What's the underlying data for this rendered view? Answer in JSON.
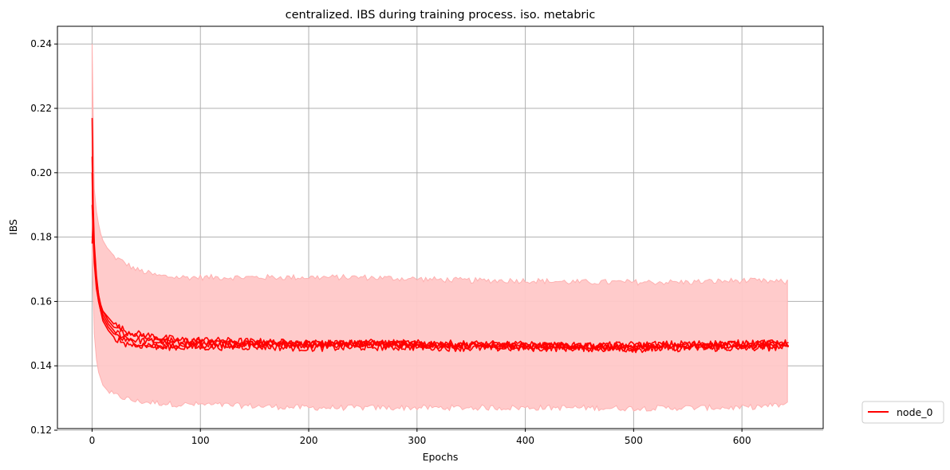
{
  "chart_data": {
    "type": "line",
    "title": "centralized. IBS during training process. iso. metabric",
    "xlabel": "Epochs",
    "ylabel": "IBS",
    "xlim": [
      -32,
      675
    ],
    "ylim": [
      0.1205,
      0.2455
    ],
    "xticks": [
      0,
      100,
      200,
      300,
      400,
      500,
      600
    ],
    "yticks": [
      0.12,
      0.14,
      0.16,
      0.18,
      0.2,
      0.22,
      0.24
    ],
    "ytick_labels": [
      "0.12",
      "0.14",
      "0.16",
      "0.18",
      "0.20",
      "0.22",
      "0.24"
    ],
    "grid": true,
    "legend": {
      "placement": "outside-lower-right",
      "entries": [
        "node_0"
      ]
    },
    "colors": {
      "line": "#ff0000",
      "band": "#ffc8c8",
      "band_edge": "#ffb0b0",
      "grid": "#b0b0b0"
    },
    "series": [
      {
        "name": "node_0",
        "runs": [
          {
            "x": [
              0,
              1,
              2,
              4,
              6,
              8,
              10,
              15,
              20,
              30,
              40,
              60,
              80,
              100,
              150,
              200,
              250,
              300,
              350,
              400,
              450,
              500,
              550,
              600,
              643
            ],
            "y": [
              0.217,
              0.19,
              0.178,
              0.168,
              0.162,
              0.158,
              0.156,
              0.153,
              0.151,
              0.149,
              0.148,
              0.1475,
              0.147,
              0.147,
              0.1468,
              0.1465,
              0.1468,
              0.1465,
              0.1462,
              0.1462,
              0.146,
              0.146,
              0.1465,
              0.147,
              0.147
            ]
          },
          {
            "x": [
              0,
              1,
              2,
              4,
              6,
              8,
              10,
              15,
              20,
              30,
              40,
              60,
              80,
              100,
              150,
              200,
              250,
              300,
              350,
              400,
              450,
              500,
              550,
              600,
              643
            ],
            "y": [
              0.178,
              0.185,
              0.175,
              0.166,
              0.161,
              0.158,
              0.157,
              0.155,
              0.153,
              0.151,
              0.15,
              0.149,
              0.148,
              0.148,
              0.1475,
              0.147,
              0.147,
              0.1465,
              0.1465,
              0.1462,
              0.1458,
              0.1455,
              0.1458,
              0.1462,
              0.1465
            ]
          },
          {
            "x": [
              0,
              1,
              2,
              4,
              6,
              8,
              10,
              15,
              20,
              30,
              40,
              60,
              80,
              100,
              150,
              200,
              250,
              300,
              350,
              400,
              450,
              500,
              550,
              600,
              643
            ],
            "y": [
              0.2,
              0.18,
              0.172,
              0.164,
              0.16,
              0.157,
              0.155,
              0.152,
              0.15,
              0.148,
              0.147,
              0.146,
              0.1458,
              0.1458,
              0.146,
              0.1455,
              0.1458,
              0.1458,
              0.1455,
              0.1455,
              0.1455,
              0.1452,
              0.1455,
              0.1455,
              0.1458
            ]
          },
          {
            "x": [
              0,
              1,
              2,
              4,
              6,
              8,
              10,
              15,
              20,
              30,
              40,
              60,
              80,
              100,
              150,
              200,
              250,
              300,
              350,
              400,
              450,
              500,
              550,
              600,
              643
            ],
            "y": [
              0.19,
              0.182,
              0.174,
              0.165,
              0.16,
              0.157,
              0.154,
              0.151,
              0.149,
              0.147,
              0.1465,
              0.146,
              0.1462,
              0.1465,
              0.1468,
              0.147,
              0.1472,
              0.147,
              0.1468,
              0.1465,
              0.1462,
              0.1465,
              0.1468,
              0.147,
              0.147
            ]
          },
          {
            "x": [
              0,
              1,
              2,
              4,
              6,
              8,
              10,
              15,
              20,
              30,
              40,
              60,
              80,
              100,
              150,
              200,
              250,
              300,
              350,
              400,
              450,
              500,
              550,
              600,
              643
            ],
            "y": [
              0.205,
              0.186,
              0.176,
              0.167,
              0.162,
              0.159,
              0.157,
              0.154,
              0.152,
              0.15,
              0.149,
              0.148,
              0.1475,
              0.1472,
              0.147,
              0.1468,
              0.1468,
              0.1466,
              0.1464,
              0.1462,
              0.146,
              0.146,
              0.146,
              0.1462,
              0.1462
            ]
          }
        ],
        "band": {
          "x": [
            0,
            1,
            2,
            4,
            6,
            8,
            10,
            15,
            20,
            30,
            40,
            60,
            80,
            100,
            150,
            200,
            250,
            300,
            350,
            400,
            450,
            500,
            550,
            600,
            643
          ],
          "upper": [
            0.24,
            0.205,
            0.195,
            0.188,
            0.184,
            0.181,
            0.179,
            0.176,
            0.174,
            0.172,
            0.17,
            0.168,
            0.1675,
            0.1675,
            0.1675,
            0.1675,
            0.1675,
            0.167,
            0.1665,
            0.1665,
            0.166,
            0.166,
            0.166,
            0.1665,
            0.166
          ],
          "lower": [
            0.175,
            0.16,
            0.15,
            0.142,
            0.138,
            0.136,
            0.134,
            0.132,
            0.131,
            0.13,
            0.129,
            0.1285,
            0.128,
            0.128,
            0.1275,
            0.127,
            0.127,
            0.127,
            0.127,
            0.127,
            0.127,
            0.1268,
            0.127,
            0.127,
            0.128
          ]
        }
      }
    ]
  }
}
